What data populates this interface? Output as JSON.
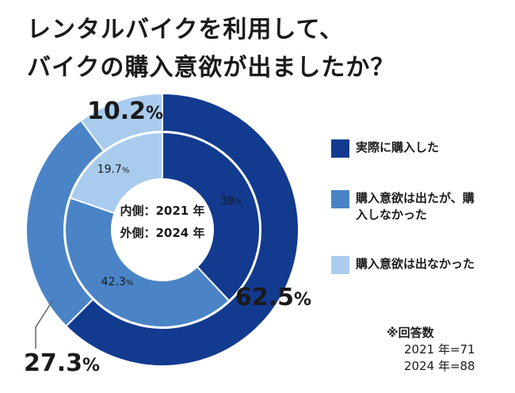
{
  "title": {
    "line1": "レンタルバイクを利用して、",
    "line2": "バイクの購入意欲が出ましたか？"
  },
  "center_label": {
    "inner": "内側：2021 年",
    "outer": "外側：2024 年"
  },
  "legend": [
    {
      "label": "実際に購入した",
      "color": "#123a8f"
    },
    {
      "label": "購入意欲は出たが、購入しなかった",
      "color": "#4a84c6"
    },
    {
      "label": "購入意欲は出なかった",
      "color": "#a9ccee"
    }
  ],
  "note": {
    "head": "※回答数",
    "line1": "2021 年=71",
    "line2": "2024 年=88"
  },
  "chart_data": {
    "type": "pie",
    "variant": "nested-donut",
    "categories": [
      "実際に購入した",
      "購入意欲は出たが、購入しなかった",
      "購入意欲は出なかった"
    ],
    "series": [
      {
        "name": "2021 年",
        "ring": "inner",
        "values": [
          38,
          42.3,
          19.7
        ],
        "labels": [
          "38%",
          "42.3%",
          "19.7%"
        ]
      },
      {
        "name": "2024 年",
        "ring": "outer",
        "values": [
          62.5,
          27.3,
          10.2
        ],
        "labels": [
          "62.5%",
          "27.3%",
          "10.2%"
        ]
      }
    ],
    "colors": [
      "#123a8f",
      "#4a84c6",
      "#a9ccee"
    ],
    "start": "top",
    "direction": "clockwise",
    "legend_position": "right"
  }
}
